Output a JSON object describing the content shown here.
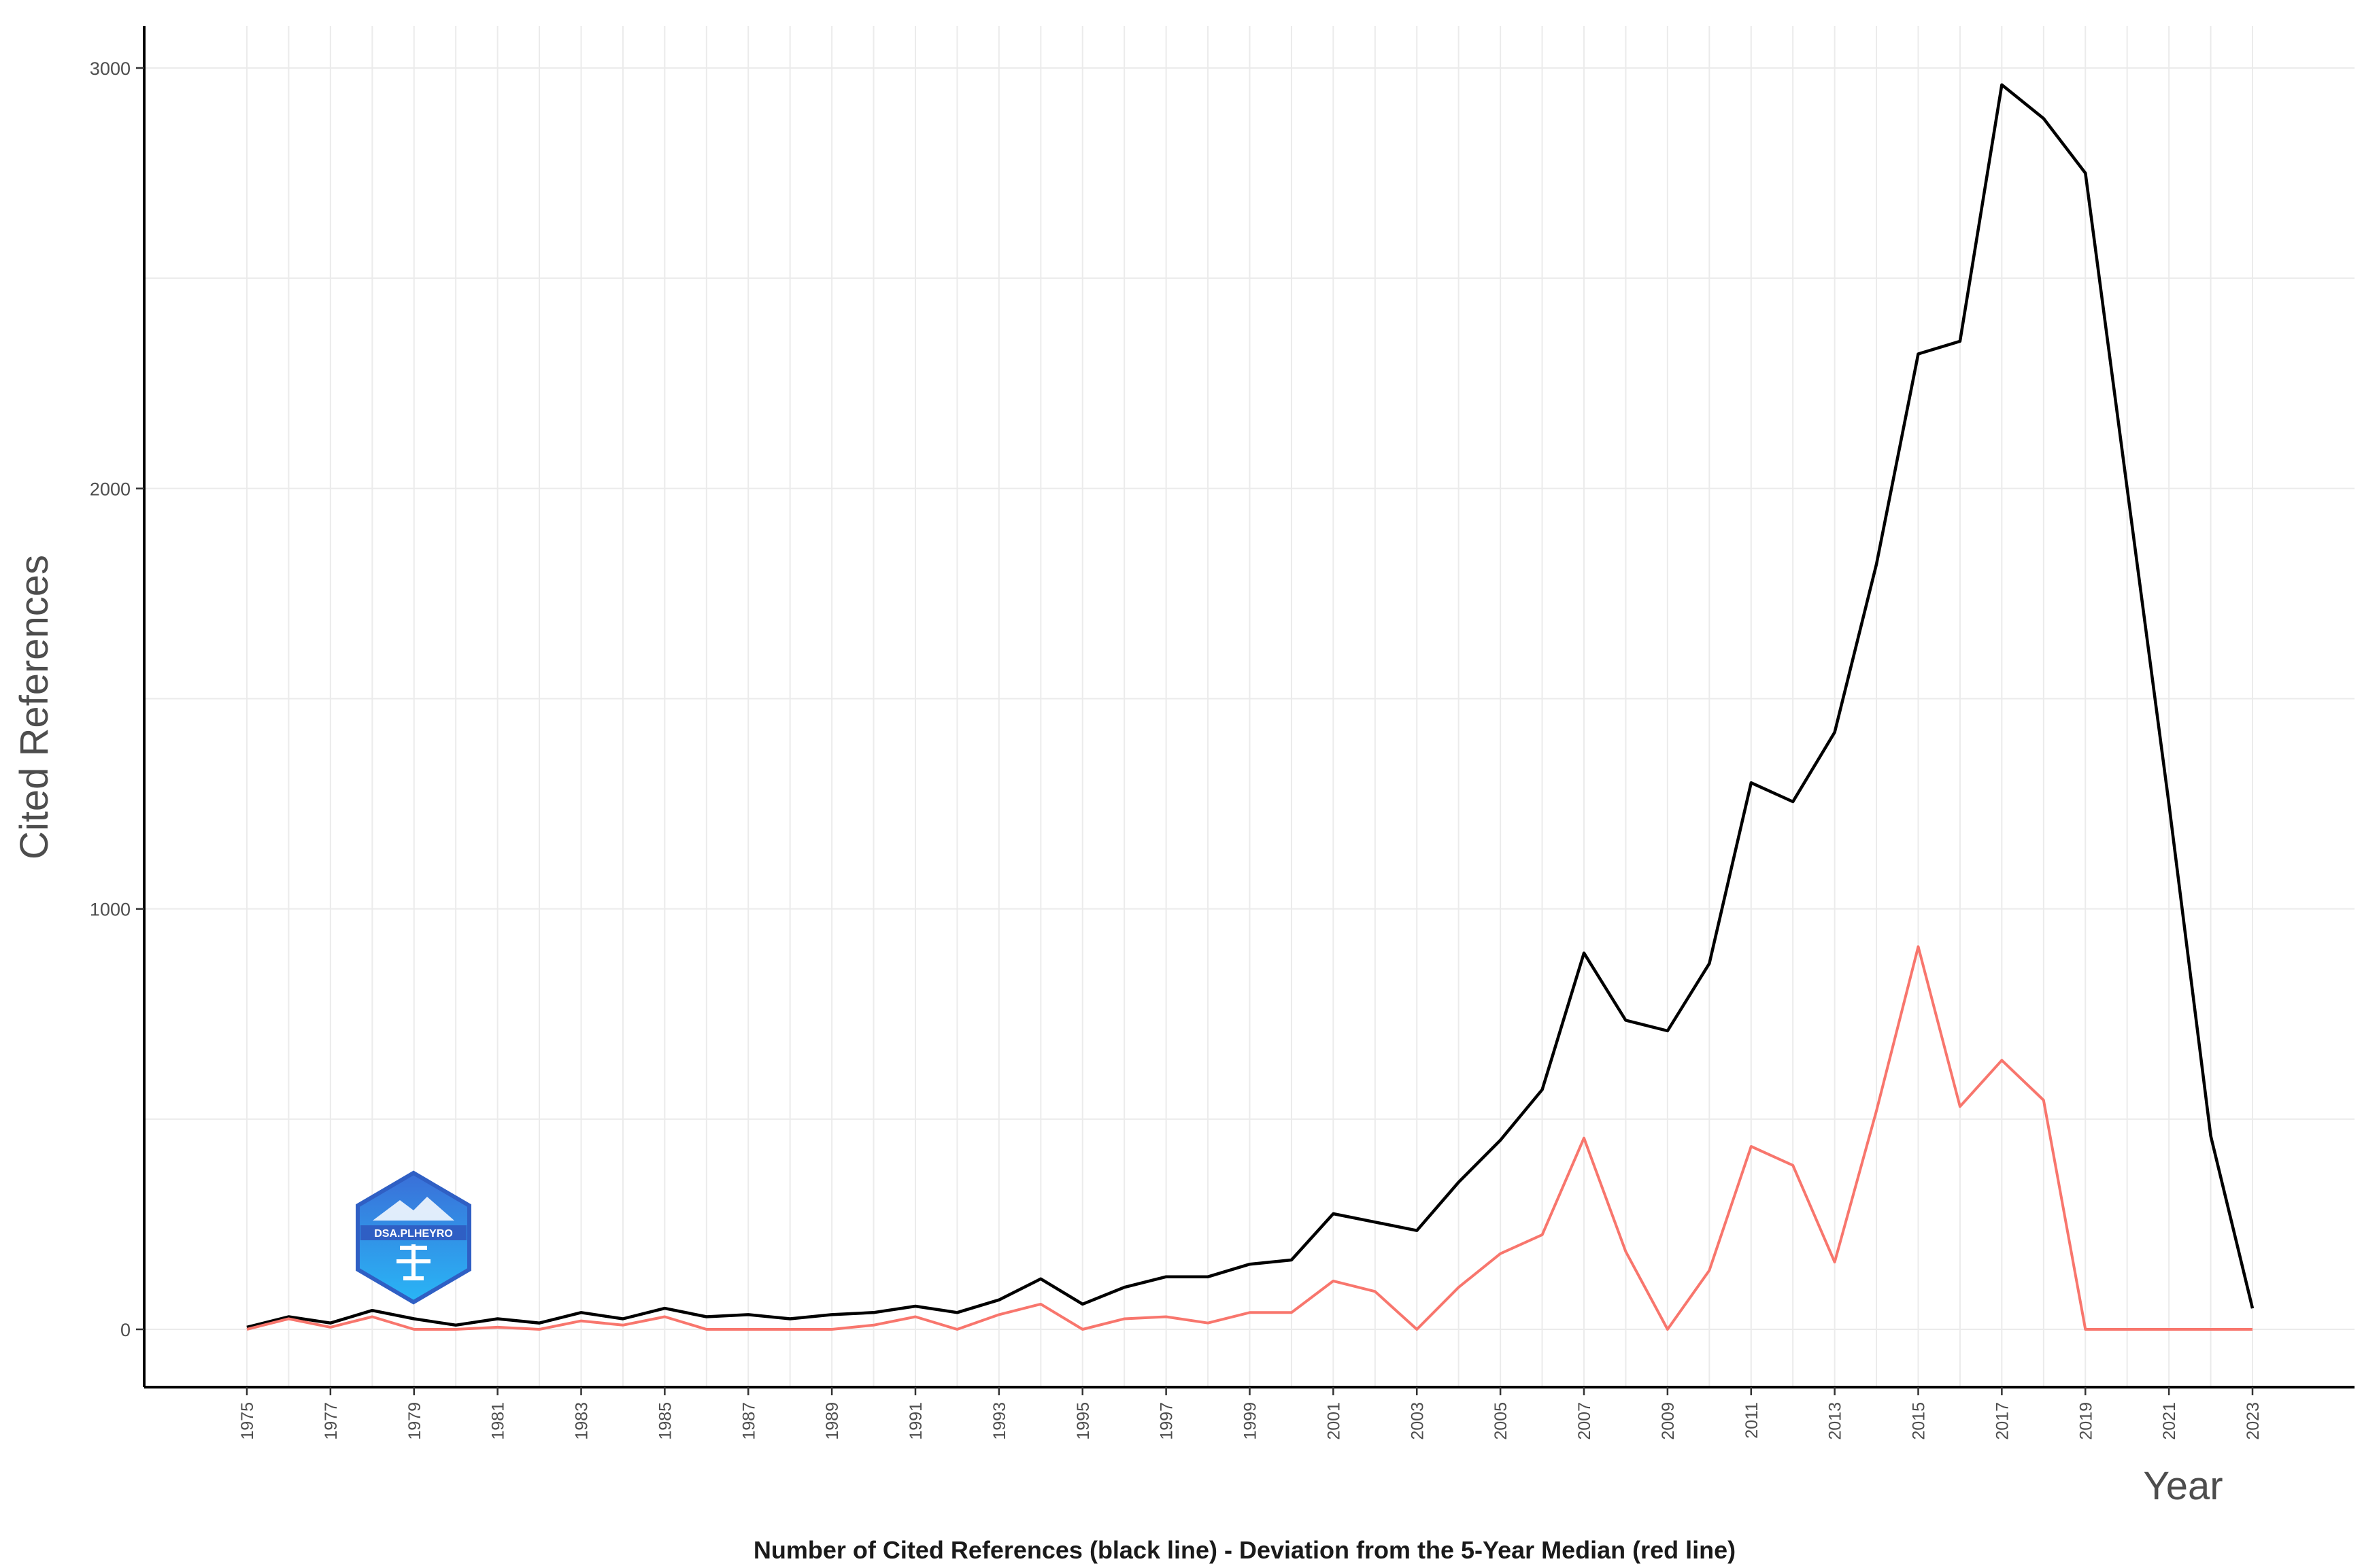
{
  "chart_data": {
    "type": "line",
    "xlabel": "Year",
    "ylabel": "Cited References",
    "caption": "Number of Cited References (black line) - Deviation from the 5-Year Median (red line)",
    "xlim": [
      1975,
      2023
    ],
    "ylim": [
      0,
      3000
    ],
    "x_ticks": [
      1975,
      1977,
      1979,
      1981,
      1983,
      1985,
      1987,
      1989,
      1991,
      1993,
      1995,
      1997,
      1999,
      2001,
      2003,
      2005,
      2007,
      2009,
      2011,
      2013,
      2015,
      2017,
      2019,
      2021,
      2023
    ],
    "y_ticks": [
      0,
      1000,
      2000,
      3000
    ],
    "grid": true,
    "legend": "none",
    "x": [
      1975,
      1976,
      1977,
      1978,
      1979,
      1980,
      1981,
      1982,
      1983,
      1984,
      1985,
      1986,
      1987,
      1988,
      1989,
      1990,
      1991,
      1992,
      1993,
      1994,
      1995,
      1996,
      1997,
      1998,
      1999,
      2000,
      2001,
      2002,
      2003,
      2004,
      2005,
      2006,
      2007,
      2008,
      2009,
      2010,
      2011,
      2012,
      2013,
      2014,
      2015,
      2016,
      2017,
      2018,
      2019,
      2020,
      2021,
      2022,
      2023
    ],
    "series": [
      {
        "color": "#000000",
        "values": [
          5,
          30,
          15,
          45,
          25,
          10,
          25,
          15,
          40,
          25,
          50,
          30,
          35,
          25,
          35,
          40,
          55,
          40,
          70,
          120,
          60,
          100,
          125,
          125,
          155,
          165,
          275,
          255,
          235,
          350,
          450,
          570,
          895,
          735,
          710,
          870,
          1300,
          1255,
          1420,
          1820,
          2320,
          2350,
          2960,
          2880,
          2750,
          2000,
          1250,
          460,
          50
        ]
      },
      {
        "color": "#f8766d",
        "values": [
          0,
          25,
          5,
          30,
          0,
          0,
          5,
          0,
          20,
          10,
          30,
          0,
          0,
          0,
          0,
          10,
          30,
          0,
          35,
          60,
          0,
          25,
          30,
          15,
          40,
          40,
          115,
          90,
          0,
          100,
          180,
          225,
          455,
          185,
          0,
          140,
          435,
          390,
          160,
          520,
          910,
          530,
          640,
          545,
          0,
          0,
          0,
          0,
          0
        ]
      }
    ]
  },
  "logo": {
    "text": "DSA.PLHEYRO"
  }
}
